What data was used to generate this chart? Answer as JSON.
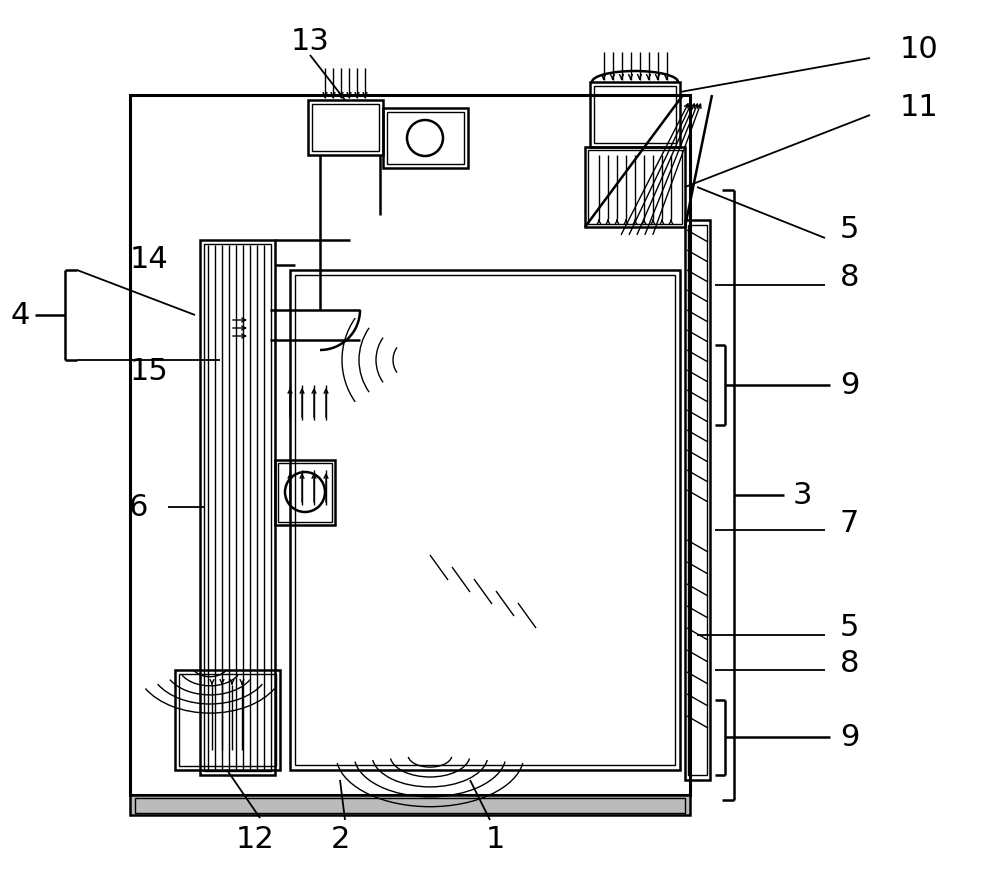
{
  "bg_color": "#ffffff",
  "lc": "#000000",
  "lw": 1.8,
  "tlw": 1.0,
  "fs": 22
}
